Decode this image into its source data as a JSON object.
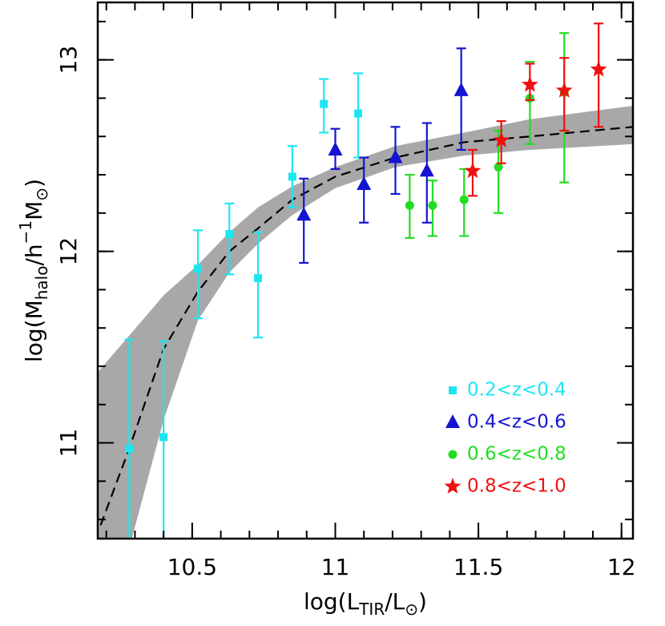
{
  "chart_data": {
    "type": "scatter",
    "xlabel_parts": [
      {
        "text": "log(L"
      },
      {
        "text": "TIR",
        "shift": "sub"
      },
      {
        "text": "/L"
      },
      {
        "text": "⊙",
        "shift": "sub"
      },
      {
        "text": ")"
      }
    ],
    "ylabel_parts": [
      {
        "text": "log(M"
      },
      {
        "text": "halo",
        "shift": "sub"
      },
      {
        "text": "/h"
      },
      {
        "text": "−1",
        "shift": "sup"
      },
      {
        "text": "M"
      },
      {
        "text": "⊙",
        "shift": "sub"
      },
      {
        "text": ")"
      }
    ],
    "xlim": [
      10.17,
      12.04
    ],
    "ylim": [
      10.5,
      13.3
    ],
    "xticks": [
      10.5,
      11,
      11.5,
      12
    ],
    "yticks": [
      11,
      12,
      13
    ],
    "xminor": 0.1,
    "yminor": 0.2,
    "legend": "lower right",
    "band": {
      "color": "#a8a8a8",
      "x": [
        10.17,
        10.28,
        10.4,
        10.52,
        10.63,
        10.73,
        10.85,
        11.0,
        11.21,
        11.45,
        11.68,
        12.04
      ],
      "upper": [
        11.37,
        11.56,
        11.77,
        11.93,
        12.1,
        12.23,
        12.34,
        12.44,
        12.55,
        12.62,
        12.69,
        12.76
      ],
      "lower": [
        10.1,
        10.45,
        11.12,
        11.64,
        11.89,
        12.04,
        12.19,
        12.33,
        12.44,
        12.5,
        12.53,
        12.56
      ]
    },
    "fit": {
      "color": "#000000",
      "x": [
        10.18,
        10.28,
        10.4,
        10.52,
        10.63,
        10.73,
        10.85,
        11.0,
        11.21,
        11.45,
        11.68,
        12.04
      ],
      "y": [
        10.57,
        10.97,
        11.49,
        11.79,
        12.0,
        12.12,
        12.27,
        12.39,
        12.49,
        12.57,
        12.6,
        12.65
      ]
    },
    "series": [
      {
        "name": "0.2<z<0.4",
        "color": "#1ee6f0",
        "marker": "square",
        "x": [
          10.28,
          10.4,
          10.52,
          10.63,
          10.73,
          10.85,
          10.96,
          11.08
        ],
        "values": [
          10.97,
          11.03,
          11.91,
          12.09,
          11.86,
          12.39,
          12.77,
          12.72
        ],
        "err_low": [
          0.6,
          0.6,
          0.26,
          0.21,
          0.31,
          0.16,
          0.15,
          0.23
        ],
        "err_high": [
          0.57,
          0.5,
          0.2,
          0.16,
          0.24,
          0.16,
          0.13,
          0.21
        ]
      },
      {
        "name": "0.4<z<0.6",
        "color": "#1414d2",
        "marker": "triangle",
        "x": [
          10.89,
          11.0,
          11.1,
          11.21,
          11.32,
          11.44
        ],
        "values": [
          12.19,
          12.53,
          12.35,
          12.49,
          12.42,
          12.84
        ],
        "err_low": [
          0.25,
          0.1,
          0.2,
          0.19,
          0.27,
          0.31
        ],
        "err_high": [
          0.19,
          0.11,
          0.14,
          0.16,
          0.25,
          0.22
        ]
      },
      {
        "name": "0.6<z<0.8",
        "color": "#22dd22",
        "marker": "circle",
        "x": [
          11.26,
          11.34,
          11.45,
          11.57,
          11.68,
          11.8
        ],
        "values": [
          12.24,
          12.24,
          12.27,
          12.44,
          12.8,
          12.83
        ],
        "err_low": [
          0.17,
          0.16,
          0.19,
          0.24,
          0.24,
          0.47
        ],
        "err_high": [
          0.16,
          0.13,
          0.16,
          0.19,
          0.19,
          0.31
        ]
      },
      {
        "name": "0.8<z<1.0",
        "color": "#ee1111",
        "marker": "star",
        "x": [
          11.48,
          11.58,
          11.68,
          11.8,
          11.92
        ],
        "values": [
          12.42,
          12.58,
          12.87,
          12.84,
          12.95
        ],
        "err_low": [
          0.13,
          0.12,
          0.08,
          0.21,
          0.3
        ],
        "err_high": [
          0.11,
          0.1,
          0.11,
          0.17,
          0.24
        ]
      }
    ]
  }
}
